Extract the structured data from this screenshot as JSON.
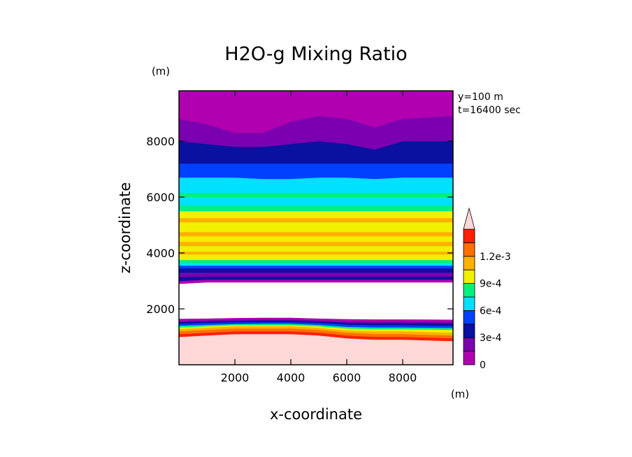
{
  "chart_data": {
    "type": "heatmap",
    "title": "H2O-g Mixing Ratio",
    "xlabel": "x-coordinate",
    "ylabel": "z-coordinate",
    "x_unit": "(m)",
    "y_unit": "(m)",
    "annotations": [
      "y=100 m",
      "t=16400 sec"
    ],
    "xlim": [
      0,
      9800
    ],
    "ylim": [
      0,
      9800
    ],
    "x_ticks": [
      2000,
      4000,
      6000,
      8000
    ],
    "y_ticks": [
      2000,
      4000,
      6000,
      8000
    ],
    "x_tick_labels": [
      "2000",
      "4000",
      "6000",
      "8000"
    ],
    "y_tick_labels": [
      "2000",
      "4000",
      "6000",
      "8000"
    ],
    "colorbar": {
      "levels": [
        0,
        0.00015,
        0.0003,
        0.00045,
        0.0006,
        0.00075,
        0.0009,
        0.00105,
        0.0012
      ],
      "colors": [
        "#b000b0",
        "#7a00b0",
        "#0a10a0",
        "#0040ff",
        "#00e0ff",
        "#00f080",
        "#f0f000",
        "#ffb000",
        "#ff7000",
        "#ff2000",
        "#ffd8d8"
      ],
      "tick_values": [
        0,
        0.0003,
        0.0006,
        0.0009,
        0.0012
      ],
      "tick_labels": [
        "0",
        "3e-4",
        "6e-4",
        "9e-4",
        "1.2e-3"
      ],
      "extend": "max"
    },
    "bands": [
      {
        "color": "#ffd8d8",
        "z_bottom": 0,
        "z_top": [
          1000,
          1050,
          1100,
          1100,
          1100,
          1050,
          950,
          900,
          900,
          850
        ]
      },
      {
        "color": "#ff2000",
        "z_bottom_ref": "prev",
        "z_top": [
          1100,
          1150,
          1200,
          1200,
          1200,
          1150,
          1050,
          1000,
          1000,
          950
        ]
      },
      {
        "color": "#ff7000",
        "z_bottom_ref": "prev",
        "z_top": [
          1200,
          1250,
          1300,
          1300,
          1300,
          1250,
          1150,
          1100,
          1100,
          1050
        ]
      },
      {
        "color": "#ffb000",
        "z_bottom_ref": "prev",
        "z_top": [
          1280,
          1330,
          1380,
          1380,
          1380,
          1330,
          1230,
          1200,
          1200,
          1150
        ]
      },
      {
        "color": "#f0f000",
        "z_bottom_ref": "prev",
        "z_top": [
          1340,
          1380,
          1420,
          1420,
          1420,
          1380,
          1300,
          1280,
          1280,
          1250
        ]
      },
      {
        "color": "#00f080",
        "z_bottom_ref": "prev",
        "z_top": [
          1400,
          1430,
          1460,
          1470,
          1470,
          1430,
          1360,
          1340,
          1340,
          1320
        ]
      },
      {
        "color": "#0040ff",
        "z_bottom_ref": "prev",
        "z_top": [
          1470,
          1500,
          1520,
          1530,
          1530,
          1500,
          1440,
          1420,
          1420,
          1400
        ]
      },
      {
        "color": "#0a10a0",
        "z_bottom_ref": "prev",
        "z_top": [
          1530,
          1560,
          1580,
          1590,
          1590,
          1560,
          1510,
          1500,
          1500,
          1480
        ]
      },
      {
        "color": "#7a00b0",
        "z_bottom_ref": "prev",
        "z_top": [
          1570,
          1600,
          1620,
          1630,
          1630,
          1600,
          1560,
          1550,
          1550,
          1540
        ]
      },
      {
        "color": "#b000b0",
        "z_bottom_ref": "prev",
        "z_top": [
          1650,
          1660,
          1680,
          1690,
          1690,
          1660,
          1640,
          1630,
          1630,
          1620
        ]
      },
      {
        "color": "#ffffff",
        "z_bottom_ref": "prev",
        "z_top": [
          2900,
          2950,
          2950,
          2950,
          2950,
          2950,
          2950,
          2950,
          2950,
          2950
        ]
      },
      {
        "color": "#b000b0",
        "z_bottom_ref": "prev",
        "z_top": [
          3000,
          3050,
          3050,
          3050,
          3050,
          3050,
          3050,
          3050,
          3050,
          3050
        ]
      },
      {
        "color": "#0a10a0",
        "z_bottom_ref": "prev",
        "z_top": [
          3150,
          3150,
          3150,
          3150,
          3150,
          3150,
          3150,
          3150,
          3150,
          3150
        ]
      },
      {
        "color": "#7a00b0",
        "z_bottom_ref": "prev",
        "z_top": [
          3300,
          3300,
          3300,
          3300,
          3300,
          3300,
          3300,
          3300,
          3300,
          3300
        ]
      },
      {
        "color": "#0a10a0",
        "z_bottom_ref": "prev",
        "z_top": [
          3450,
          3450,
          3450,
          3450,
          3450,
          3450,
          3450,
          3450,
          3450,
          3450
        ]
      },
      {
        "color": "#0040ff",
        "z_bottom_ref": "prev",
        "z_top": [
          3550,
          3550,
          3550,
          3550,
          3550,
          3550,
          3550,
          3550,
          3550,
          3550
        ]
      },
      {
        "color": "#00e0ff",
        "z_bottom_ref": "prev",
        "z_top": [
          3650,
          3650,
          3650,
          3650,
          3650,
          3650,
          3650,
          3650,
          3650,
          3650
        ]
      },
      {
        "color": "#00f080",
        "z_bottom_ref": "prev",
        "z_top": [
          3750,
          3750,
          3750,
          3750,
          3750,
          3750,
          3750,
          3750,
          3750,
          3750
        ]
      },
      {
        "color": "#f0f000",
        "z_bottom_ref": "prev",
        "z_top": [
          3950,
          3950,
          3950,
          3950,
          3950,
          3950,
          3950,
          3950,
          3950,
          3950
        ]
      },
      {
        "color": "#ffb000",
        "z_bottom_ref": "prev",
        "z_top": [
          4050,
          4050,
          4050,
          4050,
          4050,
          4050,
          4050,
          4050,
          4050,
          4050
        ]
      },
      {
        "color": "#f0f000",
        "z_bottom_ref": "prev",
        "z_top": [
          4250,
          4250,
          4250,
          4250,
          4250,
          4250,
          4250,
          4250,
          4250,
          4250
        ]
      },
      {
        "color": "#ffb000",
        "z_bottom_ref": "prev",
        "z_top": [
          4400,
          4400,
          4400,
          4400,
          4400,
          4400,
          4400,
          4400,
          4400,
          4400
        ]
      },
      {
        "color": "#f0f000",
        "z_bottom_ref": "prev",
        "z_top": [
          4600,
          4600,
          4600,
          4600,
          4600,
          4600,
          4600,
          4600,
          4600,
          4600
        ]
      },
      {
        "color": "#ffb000",
        "z_bottom_ref": "prev",
        "z_top": [
          4750,
          4750,
          4750,
          4750,
          4750,
          4750,
          4750,
          4750,
          4750,
          4750
        ]
      },
      {
        "color": "#f0f000",
        "z_bottom_ref": "prev",
        "z_top": [
          5100,
          5100,
          5100,
          5100,
          5100,
          5100,
          5100,
          5100,
          5100,
          5100
        ]
      },
      {
        "color": "#ffb000",
        "z_bottom_ref": "prev",
        "z_top": [
          5250,
          5250,
          5250,
          5250,
          5250,
          5250,
          5250,
          5250,
          5250,
          5250
        ]
      },
      {
        "color": "#f0f000",
        "z_bottom_ref": "prev",
        "z_top": [
          5500,
          5500,
          5500,
          5500,
          5500,
          5500,
          5500,
          5500,
          5500,
          5500
        ]
      },
      {
        "color": "#00f080",
        "z_bottom_ref": "prev",
        "z_top": [
          5700,
          5700,
          5700,
          5700,
          5700,
          5700,
          5700,
          5700,
          5700,
          5700
        ]
      },
      {
        "color": "#00e0ff",
        "z_bottom_ref": "prev",
        "z_top": [
          6000,
          6000,
          6000,
          6000,
          6000,
          6000,
          6000,
          6000,
          6000,
          6000
        ]
      },
      {
        "color": "#00f080",
        "z_bottom_ref": "prev",
        "z_top": [
          6150,
          6150,
          6150,
          6150,
          6150,
          6150,
          6150,
          6150,
          6150,
          6150
        ]
      },
      {
        "color": "#00e0ff",
        "z_bottom_ref": "prev",
        "z_top": [
          6700,
          6700,
          6700,
          6650,
          6650,
          6700,
          6700,
          6650,
          6700,
          6700
        ]
      },
      {
        "color": "#0040ff",
        "z_bottom_ref": "prev",
        "z_top": [
          7200,
          7200,
          7200,
          7200,
          7200,
          7200,
          7200,
          7200,
          7200,
          7200
        ]
      },
      {
        "color": "#0a10a0",
        "z_bottom_ref": "prev",
        "z_top": [
          8000,
          7900,
          7800,
          7800,
          7900,
          8000,
          7900,
          7700,
          8000,
          8000
        ]
      },
      {
        "color": "#7a00b0",
        "z_bottom_ref": "prev",
        "z_top": [
          8800,
          8600,
          8300,
          8300,
          8700,
          8900,
          8800,
          8500,
          8800,
          8900
        ]
      },
      {
        "color": "#b000b0",
        "z_bottom_ref": "prev",
        "z_top": [
          9800,
          9800,
          9800,
          9800,
          9800,
          9800,
          9800,
          9800,
          9800,
          9800
        ]
      }
    ],
    "band_x": [
      0,
      1000,
      2000,
      3000,
      4000,
      5000,
      6000,
      7000,
      8000,
      9800
    ]
  }
}
